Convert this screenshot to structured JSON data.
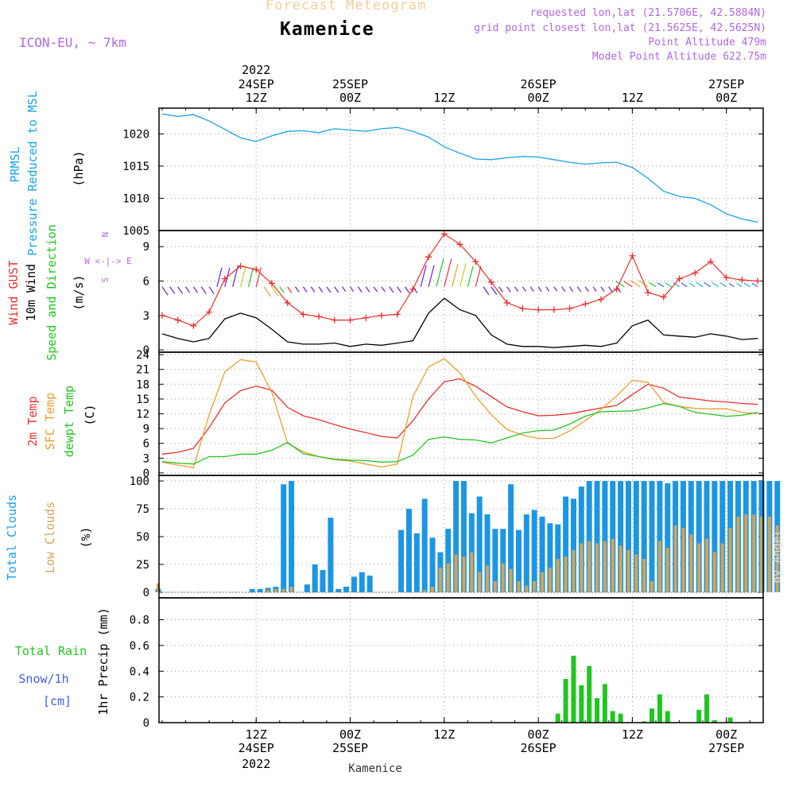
{
  "header": {
    "title": "Forecast Meteogram",
    "location": "Kamenice",
    "model": "ICON-EU, ~ 7km",
    "requested": "requested lon,lat (21.5706E, 42.5884N)",
    "gridpoint": "grid point closest lon,lat (21.5625E, 42.5625N)",
    "point_alt": "Point Altitude 479m",
    "model_alt": "Model Point Altitude 622.75m",
    "footer": "Kamenice",
    "watermark": "by Angel"
  },
  "time_axis": {
    "top_year": "2022",
    "bottom_year": "2022",
    "ticks": [
      {
        "hour": 12,
        "top": [
          "24SEP",
          "12Z"
        ],
        "bottom": [
          "12Z",
          "24SEP"
        ]
      },
      {
        "hour": 24,
        "top": [
          "25SEP",
          "00Z"
        ],
        "bottom": [
          "00Z",
          "25SEP"
        ]
      },
      {
        "hour": 36,
        "top": [
          "12Z"
        ],
        "bottom": [
          "12Z"
        ]
      },
      {
        "hour": 48,
        "top": [
          "26SEP",
          "00Z"
        ],
        "bottom": [
          "00Z",
          "26SEP"
        ]
      },
      {
        "hour": 60,
        "top": [
          "12Z"
        ],
        "bottom": [
          "12Z"
        ]
      },
      {
        "hour": 72,
        "top": [
          "27SEP",
          "00Z"
        ],
        "bottom": [
          "00Z",
          "27SEP"
        ]
      }
    ]
  },
  "panel_labels": {
    "pressure": [
      "PRMSL",
      "Pressure Reduced to MSL"
    ],
    "pressure_unit": "(hPa)",
    "wind": [
      "Wind GUST",
      "10m Wind",
      "Speed and Direction"
    ],
    "wind_unit": "(m/s)",
    "compass": [
      "N",
      "W <-|-> E",
      "S"
    ],
    "temp": [
      "2m Temp",
      "SFC Temp",
      "dewpt Temp"
    ],
    "temp_unit": "(C)",
    "clouds": [
      "Total Clouds",
      "Low Clouds"
    ],
    "clouds_unit": "(%)",
    "precip": [
      "Total  Rain",
      "Snow/1h",
      "[cm]"
    ],
    "precip_unit": "1hr Precip (mm)"
  },
  "chart_data": [
    {
      "id": "pressure",
      "type": "line",
      "ylabel": "Pressure Reduced to MSL (hPa)",
      "ylim": [
        1005,
        1024
      ],
      "yticks": [
        1005,
        1010,
        1015,
        1020
      ],
      "x_hours": [
        0,
        2,
        4,
        6,
        8,
        10,
        12,
        14,
        16,
        18,
        20,
        22,
        24,
        26,
        28,
        30,
        32,
        34,
        36,
        38,
        40,
        42,
        44,
        46,
        48,
        50,
        52,
        54,
        56,
        58,
        60,
        62,
        64,
        66,
        68,
        70,
        72,
        74,
        76
      ],
      "series": [
        {
          "name": "PRMSL",
          "color": "#1aa3e6",
          "values": [
            1023.1,
            1022.7,
            1023.0,
            1022.0,
            1020.7,
            1019.4,
            1018.8,
            1019.7,
            1020.4,
            1020.5,
            1020.2,
            1020.8,
            1020.6,
            1020.4,
            1020.8,
            1021.0,
            1020.4,
            1019.5,
            1018.0,
            1017.0,
            1016.1,
            1016.0,
            1016.3,
            1016.5,
            1016.4,
            1016.0,
            1015.6,
            1015.3,
            1015.5,
            1015.6,
            1014.8,
            1013.1,
            1011.1,
            1010.3,
            1010.0,
            1009.0,
            1007.6,
            1006.8,
            1006.3
          ]
        }
      ]
    },
    {
      "id": "wind",
      "type": "line",
      "ylabel": "(m/s)",
      "ylim": [
        -0.2,
        10.4
      ],
      "yticks": [
        0,
        3,
        6,
        9
      ],
      "x_hours": [
        0,
        2,
        4,
        6,
        8,
        10,
        12,
        14,
        16,
        18,
        20,
        22,
        24,
        26,
        28,
        30,
        32,
        34,
        36,
        38,
        40,
        42,
        44,
        46,
        48,
        50,
        52,
        54,
        56,
        58,
        60,
        62,
        64,
        66,
        68,
        70,
        72,
        74,
        76
      ],
      "series": [
        {
          "name": "Wind GUST",
          "color": "#e83030",
          "marker": "+",
          "values": [
            3.0,
            2.6,
            2.1,
            3.3,
            6.2,
            7.3,
            7.0,
            5.8,
            4.1,
            3.1,
            2.9,
            2.6,
            2.6,
            2.8,
            3.0,
            3.1,
            5.3,
            8.1,
            10.1,
            9.2,
            7.7,
            5.9,
            4.1,
            3.6,
            3.5,
            3.5,
            3.6,
            4.0,
            4.4,
            5.3,
            8.2,
            5.0,
            4.6,
            6.2,
            6.7,
            7.7,
            6.3,
            6.1,
            6.0
          ]
        },
        {
          "name": "10m Wind",
          "color": "#000000",
          "values": [
            1.4,
            1.0,
            0.7,
            1.0,
            2.7,
            3.2,
            2.8,
            1.8,
            0.7,
            0.5,
            0.5,
            0.6,
            0.3,
            0.5,
            0.4,
            0.6,
            0.8,
            3.2,
            4.5,
            3.5,
            3.0,
            1.3,
            0.5,
            0.3,
            0.3,
            0.2,
            0.3,
            0.4,
            0.3,
            0.6,
            2.1,
            2.6,
            1.3,
            1.2,
            1.1,
            1.4,
            1.2,
            0.9,
            1.0
          ]
        }
      ]
    },
    {
      "id": "temperature",
      "type": "line",
      "ylabel": "(C)",
      "ylim": [
        -0.5,
        24.5
      ],
      "yticks": [
        0,
        3,
        6,
        9,
        12,
        15,
        18,
        21,
        24
      ],
      "x_hours": [
        0,
        2,
        4,
        6,
        8,
        10,
        12,
        14,
        16,
        18,
        20,
        22,
        24,
        26,
        28,
        30,
        32,
        34,
        36,
        38,
        40,
        42,
        44,
        46,
        48,
        50,
        52,
        54,
        56,
        58,
        60,
        62,
        64,
        66,
        68,
        70,
        72,
        74,
        76
      ],
      "series": [
        {
          "name": "2m Temp",
          "color": "#e83030",
          "values": [
            3.8,
            4.2,
            5.0,
            9.2,
            14.2,
            16.7,
            17.6,
            16.8,
            13.3,
            11.6,
            10.8,
            9.8,
            8.9,
            8.2,
            7.4,
            7.1,
            10.6,
            15.0,
            18.5,
            19.1,
            17.6,
            15.5,
            13.4,
            12.4,
            11.6,
            11.7,
            12.0,
            12.6,
            13.2,
            13.7,
            15.9,
            18.0,
            17.2,
            15.4,
            15.0,
            14.6,
            14.4,
            14.1,
            13.9
          ]
        },
        {
          "name": "SFC Temp",
          "color": "#e8a030",
          "values": [
            2.2,
            1.6,
            1.1,
            11.8,
            20.5,
            23.0,
            22.5,
            16.4,
            6.0,
            4.3,
            3.3,
            2.7,
            2.4,
            1.8,
            1.2,
            1.8,
            15.5,
            21.5,
            23.2,
            20.3,
            15.6,
            11.8,
            8.8,
            7.7,
            7.0,
            7.0,
            8.5,
            10.6,
            12.9,
            15.6,
            18.8,
            18.4,
            14.3,
            13.5,
            13.1,
            13.0,
            13.0,
            12.3,
            12.0
          ]
        },
        {
          "name": "dewpt Temp",
          "color": "#22c422",
          "values": [
            2.3,
            2.0,
            1.8,
            3.3,
            3.3,
            3.8,
            3.8,
            4.6,
            6.2,
            3.9,
            3.3,
            2.8,
            2.6,
            2.5,
            2.2,
            2.3,
            3.6,
            6.8,
            7.3,
            6.8,
            6.7,
            6.1,
            7.1,
            8.1,
            8.6,
            8.7,
            9.9,
            11.5,
            12.4,
            12.5,
            12.6,
            13.2,
            14.1,
            13.5,
            12.3,
            11.9,
            11.5,
            11.7,
            12.3
          ]
        }
      ]
    },
    {
      "id": "clouds",
      "type": "bar",
      "ylabel": "(%)",
      "ylim": [
        -5,
        105
      ],
      "yticks": [
        0,
        25,
        50,
        75,
        100
      ],
      "x_start_hour": -0.5,
      "x_step_hours": 1,
      "series": [
        {
          "name": "Total Clouds",
          "color": "#1c96e3",
          "values": [
            3,
            0,
            0,
            0,
            0,
            0,
            0,
            0,
            0,
            0,
            0,
            0,
            3,
            3,
            4,
            5,
            97,
            100,
            0,
            7,
            25,
            20,
            67,
            3,
            5,
            14,
            18,
            15,
            0,
            0,
            0,
            56,
            75,
            53,
            84,
            49,
            36,
            57,
            100,
            100,
            71,
            86,
            70,
            57,
            57,
            97,
            56,
            70,
            74,
            68,
            62,
            61,
            86,
            84,
            95,
            100,
            100,
            100,
            100,
            100,
            100,
            100,
            100,
            100,
            100,
            98,
            100,
            100,
            100,
            100,
            100,
            100,
            100,
            100,
            100,
            100,
            100,
            100,
            100,
            100
          ]
        },
        {
          "name": "Low Clouds",
          "color": "#d1a45a",
          "values": [
            8,
            0,
            0,
            0,
            0,
            0,
            0,
            0,
            0,
            0,
            0,
            0,
            0,
            0,
            2,
            3,
            3,
            5,
            0,
            0,
            0,
            0,
            0,
            0,
            0,
            0,
            0,
            0,
            0,
            0,
            0,
            0,
            0,
            0,
            2,
            5,
            22,
            26,
            34,
            32,
            36,
            18,
            24,
            10,
            26,
            21,
            10,
            6,
            10,
            18,
            22,
            30,
            32,
            38,
            44,
            46,
            44,
            46,
            48,
            42,
            38,
            34,
            30,
            10,
            46,
            40,
            60,
            58,
            52,
            44,
            48,
            36,
            44,
            58,
            68,
            70,
            70,
            68,
            68,
            60
          ]
        }
      ]
    },
    {
      "id": "precip",
      "type": "bar",
      "ylabel": "1hr Precip (mm)",
      "ylim": [
        0,
        0.97
      ],
      "yticks": [
        0,
        0.2,
        0.4,
        0.6,
        0.8
      ],
      "x_start_hour": -0.5,
      "x_step_hours": 1,
      "series": [
        {
          "name": "Total Rain",
          "color": "#22c422",
          "values": [
            0,
            0,
            0,
            0,
            0,
            0,
            0,
            0,
            0,
            0,
            0,
            0,
            0,
            0,
            0,
            0,
            0,
            0,
            0,
            0,
            0,
            0,
            0,
            0,
            0,
            0,
            0,
            0,
            0,
            0,
            0,
            0,
            0,
            0,
            0,
            0,
            0,
            0,
            0,
            0,
            0,
            0,
            0,
            0,
            0,
            0,
            0,
            0,
            0,
            0,
            0,
            0.07,
            0.34,
            0.52,
            0.29,
            0.44,
            0.19,
            0.3,
            0.09,
            0.07,
            0,
            0,
            0.01,
            0.11,
            0.22,
            0.09,
            0,
            0,
            0,
            0.1,
            0.22,
            0.02,
            0,
            0.04,
            0,
            0,
            0,
            0,
            0,
            0
          ]
        },
        {
          "name": "Snow/1h",
          "color": "#4060e0",
          "values": []
        }
      ]
    }
  ]
}
